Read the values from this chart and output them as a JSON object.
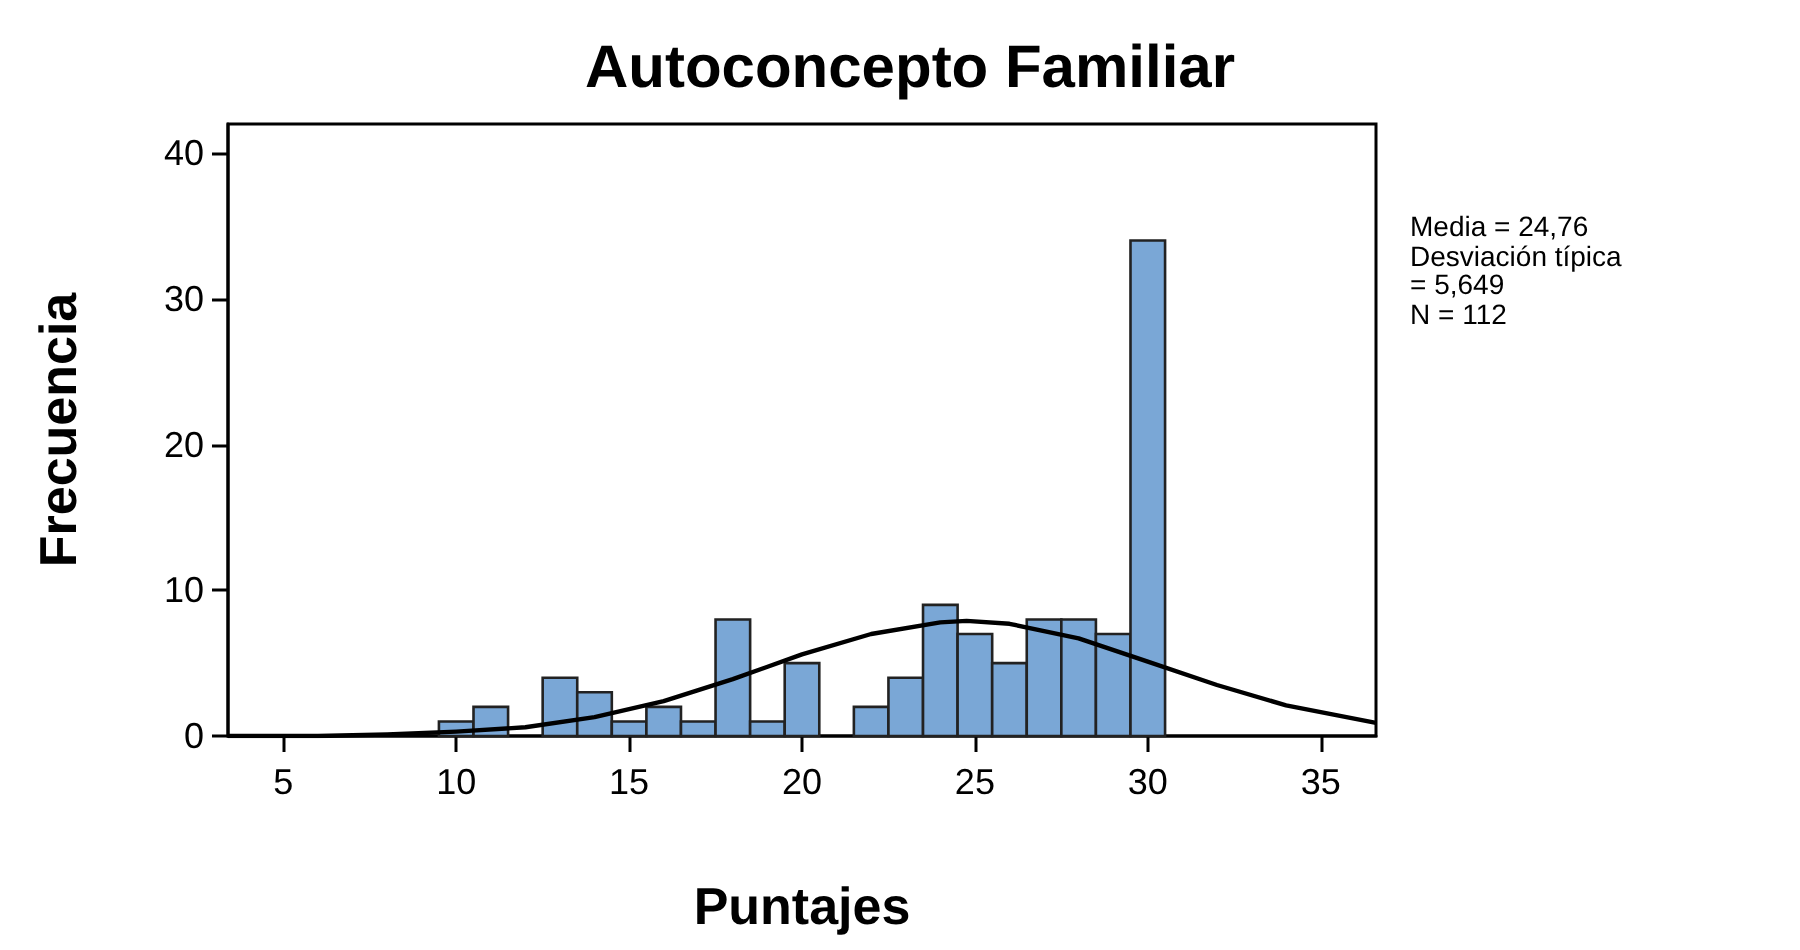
{
  "chart_data": {
    "type": "histogram",
    "title": "Autoconcepto Familiar",
    "xlabel": "Puntajes",
    "ylabel": "Frecuencia",
    "bins": [
      9.5,
      10.5,
      11.5,
      12.5,
      13.5,
      14.5,
      15.5,
      16.5,
      17.5,
      18.5,
      19.5,
      20.5,
      21.5,
      22.5,
      23.5,
      24.5,
      25.5,
      26.5,
      27.5,
      28.5,
      29.5,
      30.5
    ],
    "values": [
      1,
      2,
      0,
      4,
      3,
      1,
      2,
      1,
      8,
      1,
      5,
      0,
      2,
      4,
      9,
      7,
      5,
      8,
      8,
      7,
      34
    ],
    "color": "#7aa7d6",
    "series": [
      {
        "type": "line",
        "color": "#000000",
        "x": [
          3.4,
          6,
          8,
          10,
          12,
          14,
          16,
          18,
          20,
          22,
          24,
          24.76,
          26,
          28,
          30,
          32,
          34,
          36.6
        ],
        "values": [
          0,
          0,
          0.1,
          0.3,
          0.6,
          1.3,
          2.4,
          3.9,
          5.6,
          7,
          7.8,
          7.9,
          7.7,
          6.7,
          5.1,
          3.5,
          2.1,
          0.9
        ]
      }
    ],
    "xlim": [
      3.4,
      36.6
    ],
    "xticks": [
      5,
      10,
      15,
      20,
      25,
      30,
      35
    ],
    "ylim": [
      0,
      42
    ],
    "yticks": [
      0,
      10,
      20,
      30,
      40
    ],
    "grid": false,
    "marker": "none",
    "annotations": [
      "Media = 24,76",
      "Desviación típica = 5,649",
      "N = 112"
    ]
  }
}
